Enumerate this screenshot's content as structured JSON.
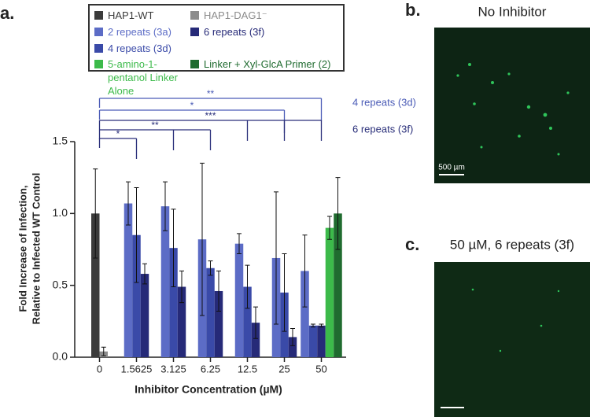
{
  "chart_data": {
    "type": "bar",
    "ylabel_lines": [
      "Fold Increase of Infection,",
      "Relative to Infected WT Control"
    ],
    "xlabel": "Inhibitor Concentration (µM)",
    "categories": [
      "0",
      "1.5625",
      "3.125",
      "6.25",
      "12.5",
      "25",
      "50"
    ],
    "series": [
      {
        "name": "HAP1-WT",
        "color": "#3b3b3b",
        "values": [
          1.0,
          null,
          null,
          null,
          null,
          null,
          null
        ],
        "errors": [
          0.31,
          null,
          null,
          null,
          null,
          null,
          null
        ]
      },
      {
        "name": "HAP1-DAG1⁻",
        "color": "#8c8c8c",
        "values": [
          0.04,
          null,
          null,
          null,
          null,
          null,
          null
        ],
        "errors": [
          0.03,
          null,
          null,
          null,
          null,
          null,
          null
        ]
      },
      {
        "name": "2 repeats (3a)",
        "color": "#5c6cc6",
        "values": [
          null,
          1.07,
          1.05,
          0.82,
          0.79,
          0.69,
          0.6
        ],
        "errors": [
          null,
          0.15,
          0.17,
          0.53,
          0.07,
          0.46,
          0.25
        ]
      },
      {
        "name": "4 repeats (3d)",
        "color": "#3a4aa8",
        "values": [
          null,
          0.85,
          0.76,
          0.62,
          0.49,
          0.45,
          0.22
        ],
        "errors": [
          null,
          0.33,
          0.27,
          0.05,
          0.15,
          0.27,
          0.01
        ]
      },
      {
        "name": "6 repeats (3f)",
        "color": "#262a78",
        "values": [
          null,
          0.58,
          0.49,
          0.46,
          0.24,
          0.14,
          0.22
        ],
        "errors": [
          null,
          0.07,
          0.11,
          0.14,
          0.11,
          0.06,
          0.01
        ]
      },
      {
        "name": "5-amino-1-pentanol Linker Alone",
        "color": "#3cba4a",
        "values": [
          null,
          null,
          null,
          null,
          null,
          null,
          0.9
        ],
        "errors": [
          null,
          null,
          null,
          null,
          null,
          null,
          0.08
        ]
      },
      {
        "name": "Linker + Xyl-GlcA Primer (2)",
        "color": "#1f6b2f",
        "values": [
          null,
          null,
          null,
          null,
          null,
          null,
          1.0
        ],
        "errors": [
          null,
          null,
          null,
          null,
          null,
          null,
          0.25
        ]
      }
    ],
    "ylim": [
      0,
      1.5
    ],
    "yticks": [
      {
        "value": 0,
        "label": "0.0"
      },
      {
        "value": 0.5,
        "label": "0.5"
      },
      {
        "value": 1,
        "label": "1.0"
      },
      {
        "value": 1.5,
        "label": "1.5"
      }
    ],
    "significance": [
      {
        "label": "4 repeats (3d)",
        "color": "#4a5bb6",
        "brackets": [
          {
            "text": "**",
            "from": "0",
            "to": [
              "50"
            ]
          },
          {
            "text": "*",
            "from": "0",
            "to": [
              "25"
            ]
          }
        ]
      },
      {
        "label": "6 repeats (3f)",
        "color": "#2a2f7a",
        "brackets": [
          {
            "text": "***",
            "from": "0",
            "to": [
              "12.5",
              "25",
              "50"
            ]
          },
          {
            "text": "**",
            "from": "0",
            "to": [
              "3.125",
              "6.25"
            ]
          },
          {
            "text": "*",
            "from": "0",
            "to": [
              "1.5625"
            ]
          }
        ]
      }
    ]
  },
  "panels": {
    "a": "a.",
    "b": "b.",
    "c": "c.",
    "b_title": "No Inhibitor",
    "c_title": "50 µM, 6 repeats (3f)",
    "scale_bar": "500 µm"
  }
}
